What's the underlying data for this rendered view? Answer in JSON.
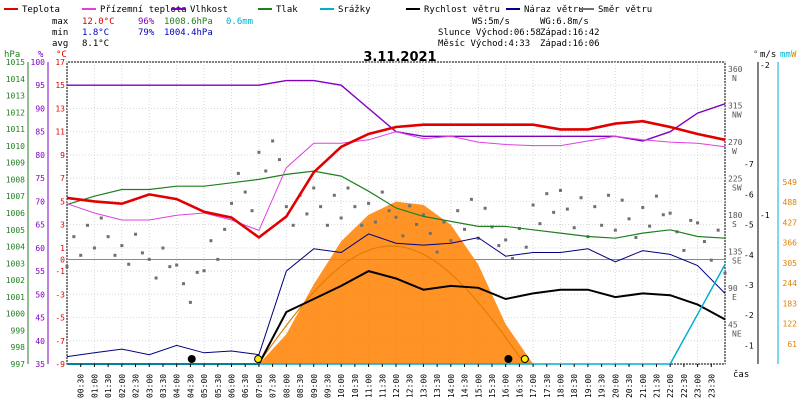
{
  "chart_data": {
    "type": "line",
    "title": "3.11.2021",
    "legend": [
      {
        "name": "Teplota",
        "color": "#e00000"
      },
      {
        "name": "Přízemní teplota",
        "color": "#e040e0"
      },
      {
        "name": "Vlhkost",
        "color": "#8000c0"
      },
      {
        "name": "Tlak",
        "color": "#208020"
      },
      {
        "name": "Srážky",
        "color": "#00b0d0"
      },
      {
        "name": "Rychlost větru",
        "color": "#000000"
      },
      {
        "name": "Náraz větru",
        "color": "#000080"
      },
      {
        "name": "Směr větru",
        "color": "#707070"
      }
    ],
    "stats": {
      "max": {
        "label": "max",
        "temp": "12.0°C",
        "hum": "96%",
        "press": "1008.6hPa",
        "rain": "0.6mm"
      },
      "min": {
        "label": "min",
        "temp": "1.8°C",
        "hum": "79%",
        "press": "1004.4hPa"
      },
      "avg": {
        "label": "avg",
        "temp": "8.1°C"
      }
    },
    "info": {
      "ws": "WS:5m/s",
      "wg": "WG:6.8m/s",
      "sun": "Slunce Východ:06:58",
      "sun_set": "Západ:16:42",
      "moon": "Měsíc Východ:4:33",
      "moon_set": "Západ:16:06"
    },
    "axes": {
      "hpa_unit": "hPa",
      "pct_unit": "%",
      "c_unit": "°C",
      "deg_unit": "°",
      "ms_unit": "m/s",
      "mm_unit": "mm",
      "w_unit": "W",
      "time_unit": "čas",
      "hpa_ticks": [
        "1015",
        "1014",
        "1013",
        "1012",
        "1011",
        "1010",
        "1009",
        "1008",
        "1007",
        "1006",
        "1005",
        "1004",
        "1003",
        "1002",
        "1001",
        "1000",
        "999",
        "998",
        "997"
      ],
      "pct_ticks": [
        "100",
        "95",
        "90",
        "85",
        "80",
        "75",
        "70",
        "65",
        "60",
        "55",
        "50",
        "45",
        "40",
        "35"
      ],
      "c_ticks": [
        "17",
        "15",
        "13",
        "11",
        "9",
        "7",
        "5",
        "3",
        "1",
        "0",
        "-1",
        "-3",
        "-5",
        "-7",
        "-9"
      ],
      "dir_ticks": [
        {
          "deg": "360",
          "dir": "N"
        },
        {
          "deg": "315",
          "dir": "NW"
        },
        {
          "deg": "270",
          "dir": "W"
        },
        {
          "deg": "225",
          "dir": "SW"
        },
        {
          "deg": "180",
          "dir": "S"
        },
        {
          "deg": "135",
          "dir": "SE"
        },
        {
          "deg": "90",
          "dir": "E"
        },
        {
          "deg": "45",
          "dir": "NE"
        }
      ],
      "ms_ticks": [
        "-2",
        "-1"
      ],
      "w_ticks": [
        "549",
        "488",
        "427",
        "366",
        "305",
        "244",
        "183",
        "122",
        "61"
      ],
      "ms_inner_ticks": [
        "-7",
        "-6",
        "-5",
        "-4",
        "-3",
        "-2",
        "-1"
      ],
      "time_ticks": [
        "00:30",
        "01:00",
        "01:30",
        "02:00",
        "02:30",
        "03:00",
        "03:30",
        "04:00",
        "04:30",
        "05:00",
        "05:30",
        "06:00",
        "06:30",
        "07:00",
        "07:30",
        "08:00",
        "08:30",
        "09:00",
        "09:30",
        "10:00",
        "10:30",
        "11:00",
        "11:30",
        "12:00",
        "12:30",
        "13:00",
        "13:30",
        "14:00",
        "14:30",
        "15:00",
        "15:30",
        "16:00",
        "16:30",
        "17:00",
        "17:30",
        "18:00",
        "18:30",
        "19:00",
        "19:30",
        "20:00",
        "20:30",
        "21:00",
        "21:30",
        "22:00",
        "22:30",
        "23:00",
        "23:30"
      ]
    },
    "x_hours": [
      0,
      1,
      2,
      3,
      4,
      5,
      6,
      7,
      8,
      9,
      10,
      11,
      12,
      13,
      14,
      15,
      16,
      17,
      18,
      19,
      20,
      21,
      22,
      23,
      24
    ],
    "series": [
      {
        "name": "Teplota",
        "unit": "°C",
        "values": [
          5.3,
          5.0,
          4.8,
          5.6,
          5.2,
          4.1,
          3.6,
          1.9,
          3.7,
          7.5,
          9.7,
          10.8,
          11.4,
          11.6,
          11.6,
          11.6,
          11.6,
          11.6,
          11.2,
          11.2,
          11.7,
          11.9,
          11.4,
          10.8,
          10.3
        ]
      },
      {
        "name": "Přízemní teplota",
        "unit": "°C",
        "values": [
          4.8,
          4.0,
          3.4,
          3.4,
          3.8,
          4.0,
          3.4,
          2.5,
          7.9,
          10.0,
          10.0,
          10.3,
          11.0,
          10.4,
          10.6,
          10.1,
          9.9,
          9.8,
          9.8,
          10.2,
          10.6,
          10.3,
          10.1,
          10.0,
          9.7
        ]
      },
      {
        "name": "Vlhkost",
        "unit": "%",
        "values": [
          95,
          95,
          95,
          95,
          95,
          95,
          95,
          95,
          96,
          96,
          95,
          90,
          85,
          84,
          84,
          84,
          84,
          84,
          84,
          84,
          84,
          83,
          85,
          89,
          91
        ]
      },
      {
        "name": "Tlak",
        "unit": "hPa",
        "values": [
          1006.5,
          1007.0,
          1007.4,
          1007.4,
          1007.6,
          1007.6,
          1007.8,
          1008.0,
          1008.3,
          1008.5,
          1008.2,
          1007.3,
          1006.3,
          1005.8,
          1005.5,
          1005.2,
          1005.2,
          1005.0,
          1004.8,
          1004.6,
          1004.5,
          1004.8,
          1005.0,
          1004.6,
          1004.5
        ]
      },
      {
        "name": "Rychlost větru",
        "unit": "m/s",
        "values": [
          0,
          0,
          0,
          0,
          0,
          0,
          0,
          0,
          2.8,
          3.5,
          4.2,
          5.0,
          4.6,
          4.0,
          4.2,
          4.1,
          3.5,
          3.8,
          4.0,
          4.0,
          3.6,
          3.8,
          3.7,
          3.2,
          2.4
        ]
      },
      {
        "name": "Náraz větru",
        "unit": "m/s",
        "values": [
          0.4,
          0.6,
          0.8,
          0.5,
          1.0,
          0.6,
          0.7,
          0.5,
          5.0,
          6.2,
          6.0,
          7.0,
          6.5,
          6.4,
          6.5,
          6.8,
          5.8,
          6.0,
          6.0,
          6.2,
          5.5,
          6.1,
          5.9,
          5.3,
          3.8
        ]
      },
      {
        "name": "Směr větru",
        "unit": "°",
        "values": [
          150,
          160,
          150,
          120,
          100,
          140,
          210,
          260,
          180,
          190,
          200,
          205,
          175,
          165,
          180,
          170,
          155,
          185,
          190,
          180,
          175,
          190,
          170,
          145,
          130
        ]
      },
      {
        "name": "Solar",
        "unit": "W",
        "values": [
          0,
          0,
          0,
          0,
          0,
          0,
          0,
          0,
          90,
          240,
          370,
          450,
          490,
          480,
          420,
          300,
          120,
          0,
          0,
          0,
          0,
          0,
          0,
          0,
          0
        ]
      },
      {
        "name": "Srážky",
        "unit": "mm",
        "values": [
          0,
          0,
          0,
          0,
          0,
          0,
          0,
          0,
          0,
          0,
          0,
          0,
          0,
          0,
          0,
          0,
          0,
          0,
          0,
          0,
          0,
          0,
          0,
          0.3,
          0.6
        ]
      }
    ],
    "ylim_c": [
      -9,
      17
    ],
    "ylim_hpa": [
      997,
      1015
    ],
    "ylim_pct": [
      35,
      100
    ],
    "ylim_w": [
      0,
      549
    ]
  }
}
